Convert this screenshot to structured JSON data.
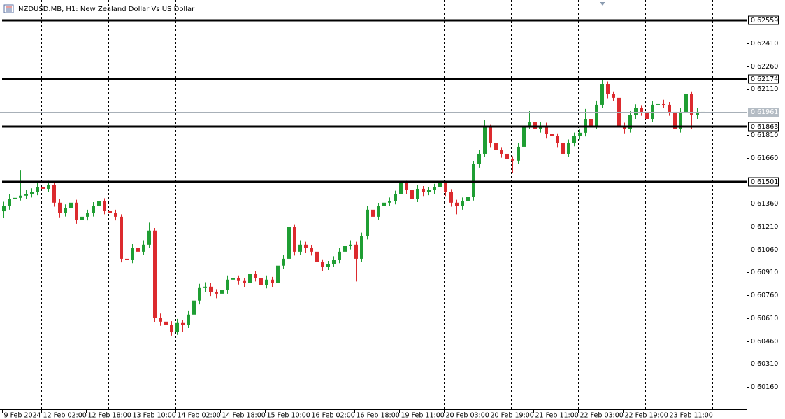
{
  "chart_data": {
    "type": "candlestick",
    "title": "NZDUSD.MB, H1:  New Zealand Dollar Vs US Dollar",
    "up_color": "#1f9e33",
    "down_color": "#dc2a2e",
    "ylim": [
      0.60018,
      0.62694
    ],
    "yticks": [
      {
        "value": 0.6241,
        "label": "0.62410"
      },
      {
        "value": 0.6226,
        "label": "0.62260"
      },
      {
        "value": 0.6211,
        "label": "0.62110"
      },
      {
        "value": 0.6181,
        "label": "0.61810"
      },
      {
        "value": 0.6166,
        "label": "0.61660"
      },
      {
        "value": 0.6136,
        "label": "0.61360"
      },
      {
        "value": 0.6121,
        "label": "0.61210"
      },
      {
        "value": 0.6106,
        "label": "0.61060"
      },
      {
        "value": 0.6091,
        "label": "0.60910"
      },
      {
        "value": 0.6076,
        "label": "0.60760"
      },
      {
        "value": 0.6061,
        "label": "0.60610"
      },
      {
        "value": 0.6046,
        "label": "0.60460"
      },
      {
        "value": 0.6031,
        "label": "0.60310"
      },
      {
        "value": 0.6016,
        "label": "0.60160"
      }
    ],
    "levels": [
      {
        "value": 0.62559,
        "label": "0.62559"
      },
      {
        "value": 0.62174,
        "label": "0.62174"
      },
      {
        "value": 0.61863,
        "label": "0.61863"
      },
      {
        "value": 0.61501,
        "label": "0.61501"
      }
    ],
    "bid": {
      "value": 0.61961,
      "label": "0.61961"
    },
    "categories": [
      "9 Feb 2024",
      null,
      null,
      null,
      null,
      null,
      null,
      "12 Feb 02:00",
      null,
      null,
      null,
      null,
      null,
      null,
      null,
      "12 Feb 18:00",
      null,
      null,
      null,
      null,
      null,
      null,
      null,
      "13 Feb 10:00",
      null,
      null,
      null,
      null,
      null,
      null,
      null,
      "14 Feb 02:00",
      null,
      null,
      null,
      null,
      null,
      null,
      null,
      "14 Feb 18:00",
      null,
      null,
      null,
      null,
      null,
      null,
      null,
      "15 Feb 10:00",
      null,
      null,
      null,
      null,
      null,
      null,
      null,
      "16 Feb 02:00",
      null,
      null,
      null,
      null,
      null,
      null,
      null,
      "16 Feb 18:00",
      null,
      null,
      null,
      null,
      null,
      null,
      null,
      "19 Feb 11:00",
      null,
      null,
      null,
      null,
      null,
      null,
      null,
      "20 Feb 03:00",
      null,
      null,
      null,
      null,
      null,
      null,
      null,
      "20 Feb 19:00",
      null,
      null,
      null,
      null,
      null,
      null,
      null,
      "21 Feb 11:00",
      null,
      null,
      null,
      null,
      null,
      null,
      null,
      "22 Feb 03:00",
      null,
      null,
      null,
      null,
      null,
      null,
      null,
      "22 Feb 19:00",
      null,
      null,
      null,
      null,
      null,
      null,
      null,
      "23 Feb 11:00",
      null,
      null,
      null,
      null,
      null,
      null
    ],
    "candles": [
      [
        0.6131,
        0.61372,
        0.61268,
        0.61343
      ],
      [
        0.61343,
        0.6142,
        0.6132,
        0.61389
      ],
      [
        0.61389,
        0.61431,
        0.6136,
        0.61398
      ],
      [
        0.61398,
        0.6158,
        0.6138,
        0.61412
      ],
      [
        0.61412,
        0.6145,
        0.6139,
        0.61421
      ],
      [
        0.61421,
        0.6146,
        0.614,
        0.61434
      ],
      [
        0.61434,
        0.61495,
        0.61415,
        0.61467
      ],
      [
        0.61467,
        0.615,
        0.6143,
        0.61457
      ],
      [
        0.61457,
        0.6151,
        0.61435,
        0.6148
      ],
      [
        0.6148,
        0.615,
        0.6134,
        0.61366
      ],
      [
        0.61366,
        0.6139,
        0.6127,
        0.61297
      ],
      [
        0.61297,
        0.61355,
        0.61275,
        0.61329
      ],
      [
        0.61329,
        0.61395,
        0.61305,
        0.61366
      ],
      [
        0.61366,
        0.61385,
        0.61228,
        0.61251
      ],
      [
        0.61251,
        0.613,
        0.61225,
        0.61274
      ],
      [
        0.61274,
        0.6132,
        0.6125,
        0.61297
      ],
      [
        0.61297,
        0.6137,
        0.61275,
        0.61343
      ],
      [
        0.61343,
        0.61405,
        0.6132,
        0.61375
      ],
      [
        0.61375,
        0.61395,
        0.6129,
        0.61311
      ],
      [
        0.61311,
        0.61335,
        0.61275,
        0.61297
      ],
      [
        0.61297,
        0.6132,
        0.6125,
        0.61274
      ],
      [
        0.61274,
        0.6129,
        0.60975,
        0.60999
      ],
      [
        0.60999,
        0.61025,
        0.60965,
        0.6099
      ],
      [
        0.6099,
        0.61095,
        0.6097,
        0.61068
      ],
      [
        0.61068,
        0.6109,
        0.6102,
        0.61045
      ],
      [
        0.61045,
        0.6112,
        0.61025,
        0.61091
      ],
      [
        0.61091,
        0.61235,
        0.6107,
        0.61183
      ],
      [
        0.61183,
        0.612,
        0.60585,
        0.6061
      ],
      [
        0.6061,
        0.6064,
        0.6056,
        0.60587
      ],
      [
        0.60587,
        0.6061,
        0.6054,
        0.60564
      ],
      [
        0.60564,
        0.6059,
        0.60495,
        0.60519
      ],
      [
        0.60519,
        0.60605,
        0.605,
        0.60578
      ],
      [
        0.60578,
        0.606,
        0.6052,
        0.60564
      ],
      [
        0.60564,
        0.6066,
        0.60545,
        0.60633
      ],
      [
        0.60633,
        0.60755,
        0.6061,
        0.60725
      ],
      [
        0.60725,
        0.60835,
        0.607,
        0.60807
      ],
      [
        0.60807,
        0.60845,
        0.6078,
        0.60816
      ],
      [
        0.60816,
        0.6084,
        0.60755,
        0.6078
      ],
      [
        0.6078,
        0.608,
        0.6074,
        0.6077
      ],
      [
        0.6077,
        0.6082,
        0.6075,
        0.60793
      ],
      [
        0.60793,
        0.6089,
        0.6077,
        0.60862
      ],
      [
        0.60862,
        0.60895,
        0.6084,
        0.60871
      ],
      [
        0.60871,
        0.6089,
        0.6083,
        0.60853
      ],
      [
        0.60853,
        0.60875,
        0.60815,
        0.60839
      ],
      [
        0.60839,
        0.6093,
        0.6082,
        0.60899
      ],
      [
        0.60899,
        0.6092,
        0.6085,
        0.60871
      ],
      [
        0.60871,
        0.60895,
        0.608,
        0.60825
      ],
      [
        0.60825,
        0.6089,
        0.60805,
        0.60862
      ],
      [
        0.60862,
        0.6088,
        0.60815,
        0.60839
      ],
      [
        0.60839,
        0.6098,
        0.6082,
        0.60954
      ],
      [
        0.60954,
        0.61025,
        0.6093,
        0.60999
      ],
      [
        0.60999,
        0.6126,
        0.6098,
        0.61206
      ],
      [
        0.61206,
        0.61225,
        0.6102,
        0.61045
      ],
      [
        0.61045,
        0.6112,
        0.61025,
        0.61091
      ],
      [
        0.61091,
        0.6111,
        0.6104,
        0.61068
      ],
      [
        0.61068,
        0.6109,
        0.6102,
        0.61045
      ],
      [
        0.61045,
        0.61065,
        0.60955,
        0.60977
      ],
      [
        0.60977,
        0.60995,
        0.6092,
        0.60944
      ],
      [
        0.60944,
        0.60985,
        0.60925,
        0.60963
      ],
      [
        0.60963,
        0.61015,
        0.60945,
        0.6099
      ],
      [
        0.6099,
        0.6107,
        0.6097,
        0.61045
      ],
      [
        0.61045,
        0.6111,
        0.61025,
        0.61082
      ],
      [
        0.61082,
        0.6112,
        0.6106,
        0.61091
      ],
      [
        0.61091,
        0.6111,
        0.6085,
        0.60999
      ],
      [
        0.60999,
        0.6117,
        0.6098,
        0.61146
      ],
      [
        0.61146,
        0.61345,
        0.61125,
        0.6132
      ],
      [
        0.6132,
        0.6134,
        0.6125,
        0.61274
      ],
      [
        0.61274,
        0.61365,
        0.61255,
        0.61343
      ],
      [
        0.61343,
        0.6139,
        0.6132,
        0.61366
      ],
      [
        0.61366,
        0.614,
        0.61345,
        0.61375
      ],
      [
        0.61375,
        0.61445,
        0.61355,
        0.61421
      ],
      [
        0.61421,
        0.6152,
        0.614,
        0.61494
      ],
      [
        0.61494,
        0.6151,
        0.61425,
        0.61448
      ],
      [
        0.61448,
        0.61465,
        0.61365,
        0.61389
      ],
      [
        0.61389,
        0.6148,
        0.6137,
        0.61457
      ],
      [
        0.61457,
        0.61475,
        0.6141,
        0.61434
      ],
      [
        0.61434,
        0.6147,
        0.61415,
        0.61448
      ],
      [
        0.61448,
        0.6149,
        0.61425,
        0.61467
      ],
      [
        0.61467,
        0.6152,
        0.61445,
        0.61494
      ],
      [
        0.61494,
        0.6151,
        0.6141,
        0.61434
      ],
      [
        0.61434,
        0.61455,
        0.6134,
        0.61366
      ],
      [
        0.61366,
        0.61385,
        0.6129,
        0.61343
      ],
      [
        0.61343,
        0.614,
        0.6132,
        0.61375
      ],
      [
        0.61375,
        0.61425,
        0.61355,
        0.61402
      ],
      [
        0.61402,
        0.6164,
        0.6138,
        0.61618
      ],
      [
        0.61618,
        0.6171,
        0.61595,
        0.61686
      ],
      [
        0.61686,
        0.6191,
        0.61665,
        0.6186
      ],
      [
        0.6186,
        0.6188,
        0.6173,
        0.61755
      ],
      [
        0.61755,
        0.61775,
        0.61685,
        0.61709
      ],
      [
        0.61709,
        0.6173,
        0.6166,
        0.61686
      ],
      [
        0.61686,
        0.61705,
        0.61625,
        0.6165
      ],
      [
        0.6165,
        0.6167,
        0.6156,
        0.61641
      ],
      [
        0.61641,
        0.61755,
        0.6162,
        0.61732
      ],
      [
        0.61732,
        0.61895,
        0.6171,
        0.6187
      ],
      [
        0.6187,
        0.6197,
        0.6185,
        0.61892
      ],
      [
        0.61892,
        0.61915,
        0.61825,
        0.61847
      ],
      [
        0.61847,
        0.61895,
        0.61825,
        0.6187
      ],
      [
        0.6187,
        0.6189,
        0.6179,
        0.61815
      ],
      [
        0.61815,
        0.6184,
        0.6178,
        0.61801
      ],
      [
        0.61801,
        0.6182,
        0.6173,
        0.61755
      ],
      [
        0.61755,
        0.61775,
        0.6163,
        0.61686
      ],
      [
        0.61686,
        0.6178,
        0.61665,
        0.61755
      ],
      [
        0.61755,
        0.61825,
        0.61735,
        0.61801
      ],
      [
        0.61801,
        0.61845,
        0.6178,
        0.61824
      ],
      [
        0.61824,
        0.6198,
        0.618,
        0.61915
      ],
      [
        0.61915,
        0.61935,
        0.61845,
        0.6187
      ],
      [
        0.6187,
        0.62035,
        0.6185,
        0.62007
      ],
      [
        0.62007,
        0.6217,
        0.61985,
        0.62144
      ],
      [
        0.62144,
        0.6216,
        0.6205,
        0.62076
      ],
      [
        0.62076,
        0.62095,
        0.6203,
        0.62053
      ],
      [
        0.62053,
        0.6207,
        0.618,
        0.6187
      ],
      [
        0.6187,
        0.6189,
        0.6182,
        0.61847
      ],
      [
        0.61847,
        0.61965,
        0.61825,
        0.61938
      ],
      [
        0.61938,
        0.6201,
        0.61915,
        0.61984
      ],
      [
        0.61984,
        0.62005,
        0.61935,
        0.61961
      ],
      [
        0.61961,
        0.6198,
        0.6187,
        0.61915
      ],
      [
        0.61915,
        0.6203,
        0.61895,
        0.62007
      ],
      [
        0.62007,
        0.62045,
        0.6199,
        0.62016
      ],
      [
        0.62016,
        0.6204,
        0.61985,
        0.62007
      ],
      [
        0.62007,
        0.62025,
        0.61935,
        0.61961
      ],
      [
        0.61961,
        0.61985,
        0.618,
        0.61847
      ],
      [
        0.61847,
        0.61985,
        0.61825,
        0.61961
      ],
      [
        0.61961,
        0.6211,
        0.6194,
        0.62076
      ],
      [
        0.62076,
        0.62095,
        0.6185,
        0.61938
      ],
      [
        0.61938,
        0.61985,
        0.61915,
        0.61961
      ],
      [
        0.61961,
        0.6198,
        0.6192,
        0.61961
      ]
    ]
  }
}
